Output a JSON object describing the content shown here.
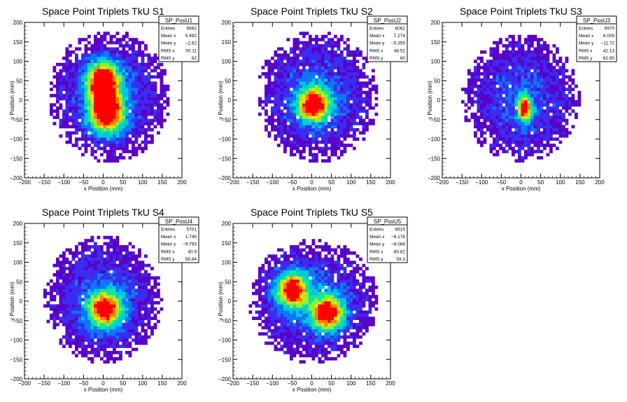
{
  "chart_data": [
    {
      "type": "heatmap",
      "title": "Space Point Triplets TkU S1",
      "xlabel": "x Position (mm)",
      "ylabel": "y Position (mm)",
      "xlim": [
        -200,
        200
      ],
      "ylim": [
        -200,
        200
      ],
      "xticks": [
        -200,
        -150,
        -100,
        -50,
        0,
        50,
        100,
        150,
        200
      ],
      "yticks": [
        -200,
        -150,
        -100,
        -50,
        0,
        50,
        100,
        150,
        200
      ],
      "xtick_labels": [
        "−200",
        "−150",
        "−100",
        "−50",
        "0",
        "50",
        "100",
        "150",
        "200"
      ],
      "ytick_labels": [
        "−200",
        "−150",
        "−100",
        "−50",
        "0",
        "50",
        "100",
        "150",
        "200"
      ],
      "stats": {
        "name": "SP_PosU1",
        "rows": [
          {
            "label": "Entries",
            "value": "5692"
          },
          {
            "label": "Mean x",
            "value": "5.492"
          },
          {
            "label": "Mean y",
            "value": "−2.62"
          },
          {
            "label": "RMS x",
            "value": "50.11"
          },
          {
            "label": "RMS y",
            "value": "62"
          }
        ]
      },
      "entries": 5692,
      "mean_x": 5.492,
      "mean_y": -2.62,
      "rms_x": 50.11,
      "rms_y": 62,
      "distribution_extent": {
        "x": [
          -140,
          170
        ],
        "y": [
          -160,
          180
        ]
      },
      "peaks": [
        {
          "x": 0,
          "y": 55,
          "weight": 1.0
        },
        {
          "x": 10,
          "y": -40,
          "weight": 1.0
        },
        {
          "x": 5,
          "y": 5,
          "weight": 0.6
        }
      ]
    },
    {
      "type": "heatmap",
      "title": "Space Point Triplets TkU S2",
      "xlabel": "x Position (mm)",
      "ylabel": "y Position (mm)",
      "xlim": [
        -200,
        200
      ],
      "ylim": [
        -200,
        200
      ],
      "xticks": [
        -200,
        -150,
        -100,
        -50,
        0,
        50,
        100,
        150,
        200
      ],
      "yticks": [
        -200,
        -150,
        -100,
        -50,
        0,
        50,
        100,
        150,
        200
      ],
      "xtick_labels": [
        "−200",
        "−150",
        "−100",
        "−50",
        "0",
        "50",
        "100",
        "150",
        "200"
      ],
      "ytick_labels": [
        "−200",
        "−150",
        "−100",
        "−50",
        "0",
        "50",
        "100",
        "150",
        "200"
      ],
      "stats": {
        "name": "SP_PosU2",
        "rows": [
          {
            "label": "Entries",
            "value": "6062"
          },
          {
            "label": "Mean x",
            "value": "7.274"
          },
          {
            "label": "Mean y",
            "value": "−5.355"
          },
          {
            "label": "RMS x",
            "value": "48.52"
          },
          {
            "label": "RMS y",
            "value": "60"
          }
        ]
      },
      "entries": 6062,
      "mean_x": 7.274,
      "mean_y": -5.355,
      "rms_x": 48.52,
      "rms_y": 60,
      "distribution_extent": {
        "x": [
          -140,
          170
        ],
        "y": [
          -160,
          180
        ]
      },
      "peaks": [
        {
          "x": 5,
          "y": -10,
          "weight": 1.0
        }
      ]
    },
    {
      "type": "heatmap",
      "title": "Space Point Triplets TkU S3",
      "xlabel": "x Position (mm)",
      "ylabel": "y Position (mm)",
      "xlim": [
        -200,
        200
      ],
      "ylim": [
        -200,
        200
      ],
      "xticks": [
        -200,
        -150,
        -100,
        -50,
        0,
        50,
        100,
        150,
        200
      ],
      "yticks": [
        -200,
        -150,
        -100,
        -50,
        0,
        50,
        100,
        150,
        200
      ],
      "xtick_labels": [
        "−200",
        "−150",
        "−100",
        "−50",
        "0",
        "50",
        "100",
        "150",
        "200"
      ],
      "ytick_labels": [
        "−200",
        "−150",
        "−100",
        "−50",
        "0",
        "50",
        "100",
        "150",
        "200"
      ],
      "stats": {
        "name": "SP_PosU3",
        "rows": [
          {
            "label": "Entries",
            "value": "5970"
          },
          {
            "label": "Mean x",
            "value": "6.009"
          },
          {
            "label": "Mean y",
            "value": "−11.72"
          },
          {
            "label": "RMS x",
            "value": "42.13"
          },
          {
            "label": "RMS y",
            "value": "62.95"
          }
        ]
      },
      "entries": 5970,
      "mean_x": 6.009,
      "mean_y": -11.72,
      "rms_x": 42.13,
      "rms_y": 62.95,
      "distribution_extent": {
        "x": [
          -150,
          150
        ],
        "y": [
          -160,
          170
        ]
      },
      "peaks": [
        {
          "x": 10,
          "y": -20,
          "weight": 1.0
        }
      ]
    },
    {
      "type": "heatmap",
      "title": "Space Point Triplets TkU S4",
      "xlabel": "x Position (mm)",
      "ylabel": "y Position (mm)",
      "xlim": [
        -200,
        200
      ],
      "ylim": [
        -200,
        200
      ],
      "xticks": [
        -200,
        -150,
        -100,
        -50,
        0,
        50,
        100,
        150,
        200
      ],
      "yticks": [
        -200,
        -150,
        -100,
        -50,
        0,
        50,
        100,
        150,
        200
      ],
      "xtick_labels": [
        "−200",
        "−150",
        "−100",
        "−50",
        "0",
        "50",
        "100",
        "150",
        "200"
      ],
      "ytick_labels": [
        "−200",
        "−150",
        "−100",
        "−50",
        "0",
        "50",
        "100",
        "150",
        "200"
      ],
      "stats": {
        "name": "SP_PosU4",
        "rows": [
          {
            "label": "Entries",
            "value": "5701"
          },
          {
            "label": "Mean x",
            "value": "1.745"
          },
          {
            "label": "Mean y",
            "value": "−9.793"
          },
          {
            "label": "RMS x",
            "value": "40.9"
          },
          {
            "label": "RMS y",
            "value": "55.84"
          }
        ]
      },
      "entries": 5701,
      "mean_x": 1.745,
      "mean_y": -9.793,
      "rms_x": 40.9,
      "rms_y": 55.84,
      "distribution_extent": {
        "x": [
          -150,
          150
        ],
        "y": [
          -160,
          170
        ]
      },
      "peaks": [
        {
          "x": 5,
          "y": -20,
          "weight": 1.0
        }
      ]
    },
    {
      "type": "heatmap",
      "title": "Space Point Triplets TkU S5",
      "xlabel": "x Position (mm)",
      "ylabel": "y Position (mm)",
      "xlim": [
        -200,
        200
      ],
      "ylim": [
        -200,
        200
      ],
      "xticks": [
        -200,
        -150,
        -100,
        -50,
        0,
        50,
        100,
        150,
        200
      ],
      "yticks": [
        -200,
        -150,
        -100,
        -50,
        0,
        50,
        100,
        150,
        200
      ],
      "xtick_labels": [
        "−200",
        "−150",
        "−100",
        "−50",
        "0",
        "50",
        "100",
        "150",
        "200"
      ],
      "ytick_labels": [
        "−200",
        "−150",
        "−100",
        "−50",
        "0",
        "50",
        "100",
        "150",
        "200"
      ],
      "stats": {
        "name": "SP_PosU5",
        "rows": [
          {
            "label": "Entries",
            "value": "6615"
          },
          {
            "label": "Mean x",
            "value": "−6.178"
          },
          {
            "label": "Mean y",
            "value": "−8.088"
          },
          {
            "label": "RMS x",
            "value": "60.82"
          },
          {
            "label": "RMS y",
            "value": "59.3"
          }
        ]
      },
      "entries": 6615,
      "mean_x": -6.178,
      "mean_y": -8.088,
      "rms_x": 60.82,
      "rms_y": 59.3,
      "distribution_extent": {
        "x": [
          -160,
          170
        ],
        "y": [
          -160,
          160
        ]
      },
      "peaks": [
        {
          "x": -50,
          "y": 30,
          "weight": 1.0
        },
        {
          "x": 40,
          "y": -30,
          "weight": 1.0
        }
      ]
    }
  ],
  "colors": {
    "background": "#ffffff",
    "axis": "#000000",
    "palette": [
      "#5a00c8",
      "#3a2cf0",
      "#0a78f8",
      "#00c8dc",
      "#10e89a",
      "#90f030",
      "#f0e000",
      "#ff8000",
      "#ff0000"
    ]
  }
}
